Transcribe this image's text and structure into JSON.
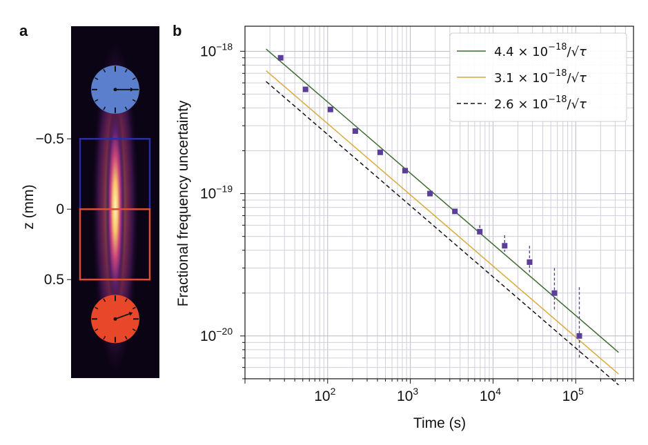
{
  "panel_a": {
    "letter": "a",
    "ylabel": "z (mm)",
    "ticks": [
      {
        "value": -0.5,
        "label": "−0.5"
      },
      {
        "value": 0,
        "label": "0"
      },
      {
        "value": 0.5,
        "label": "0.5"
      }
    ],
    "zlim": [
      -1.3,
      1.2
    ],
    "clocks": [
      {
        "z": -0.85,
        "color": "#5b7fcc"
      },
      {
        "z": 0.78,
        "color": "#e8472a"
      }
    ],
    "boxes": [
      {
        "z_top": -0.5,
        "z_bottom": 0,
        "color": "#2c2fa3"
      },
      {
        "z_top": 0,
        "z_bottom": 0.5,
        "color": "#d9503a"
      }
    ]
  },
  "chart_data": {
    "letter": "b",
    "type": "scatter",
    "xscale": "log",
    "yscale": "log",
    "xlabel": "Time (s)",
    "ylabel": "Fractional frequency uncertainty",
    "xlim": [
      10,
      500000
    ],
    "ylim": [
      5e-21,
      1.5e-18
    ],
    "grid": true,
    "legend_position": "top-right",
    "x_tick_labels": [
      {
        "value": 100,
        "base": "10",
        "exp": "2"
      },
      {
        "value": 1000,
        "base": "10",
        "exp": "3"
      },
      {
        "value": 10000,
        "base": "10",
        "exp": "4"
      },
      {
        "value": 100000,
        "base": "10",
        "exp": "5"
      }
    ],
    "y_tick_labels": [
      {
        "value": 1e-18,
        "base": "10",
        "exp": "−18"
      },
      {
        "value": 1e-19,
        "base": "10",
        "exp": "−19"
      },
      {
        "value": 1e-20,
        "base": "10",
        "exp": "−20"
      }
    ],
    "series": [
      {
        "kind": "points",
        "color": "#5a3e99",
        "x": [
          27,
          54,
          108,
          216,
          432,
          864,
          1728,
          3456,
          6912,
          13824,
          27648,
          55296,
          110592
        ],
        "y": [
          9e-19,
          5.4e-19,
          3.9e-19,
          2.75e-19,
          1.95e-19,
          1.45e-19,
          1e-19,
          7.5e-20,
          5.4e-20,
          4.3e-20,
          3.3e-20,
          2e-20,
          1e-20
        ],
        "err_low": [
          0,
          0,
          0,
          0,
          0,
          0,
          0,
          0,
          0,
          0,
          0,
          0,
          0
        ],
        "err_high": [
          0,
          0,
          0,
          0,
          0,
          0,
          0,
          0,
          6e-21,
          8e-21,
          1e-20,
          1e-20,
          1.2e-20
        ],
        "err_low_shown": [
          0,
          0,
          0,
          0,
          0,
          0,
          0,
          0,
          0,
          4e-21,
          5e-21,
          5e-21,
          3e-21
        ]
      },
      {
        "kind": "line",
        "name_prefix": "4.4 × 10",
        "name_exp": "−18",
        "name_suffix": "/√",
        "name_var": "τ",
        "coefficient": 4.4e-18,
        "color": "#3d6b2e",
        "dash": "none",
        "x_range": [
          18,
          330000
        ]
      },
      {
        "kind": "line",
        "name_prefix": "3.1 × 10",
        "name_exp": "−18",
        "name_suffix": "/√",
        "name_var": "τ",
        "coefficient": 3.1e-18,
        "color": "#d9a939",
        "dash": "none",
        "x_range": [
          18,
          330000
        ]
      },
      {
        "kind": "line",
        "name_prefix": "2.6 × 10",
        "name_exp": "−18",
        "name_suffix": "/√",
        "name_var": "τ",
        "coefficient": 2.6e-18,
        "color": "#111111",
        "dash": "6,4",
        "x_range": [
          18,
          330000
        ]
      }
    ]
  }
}
